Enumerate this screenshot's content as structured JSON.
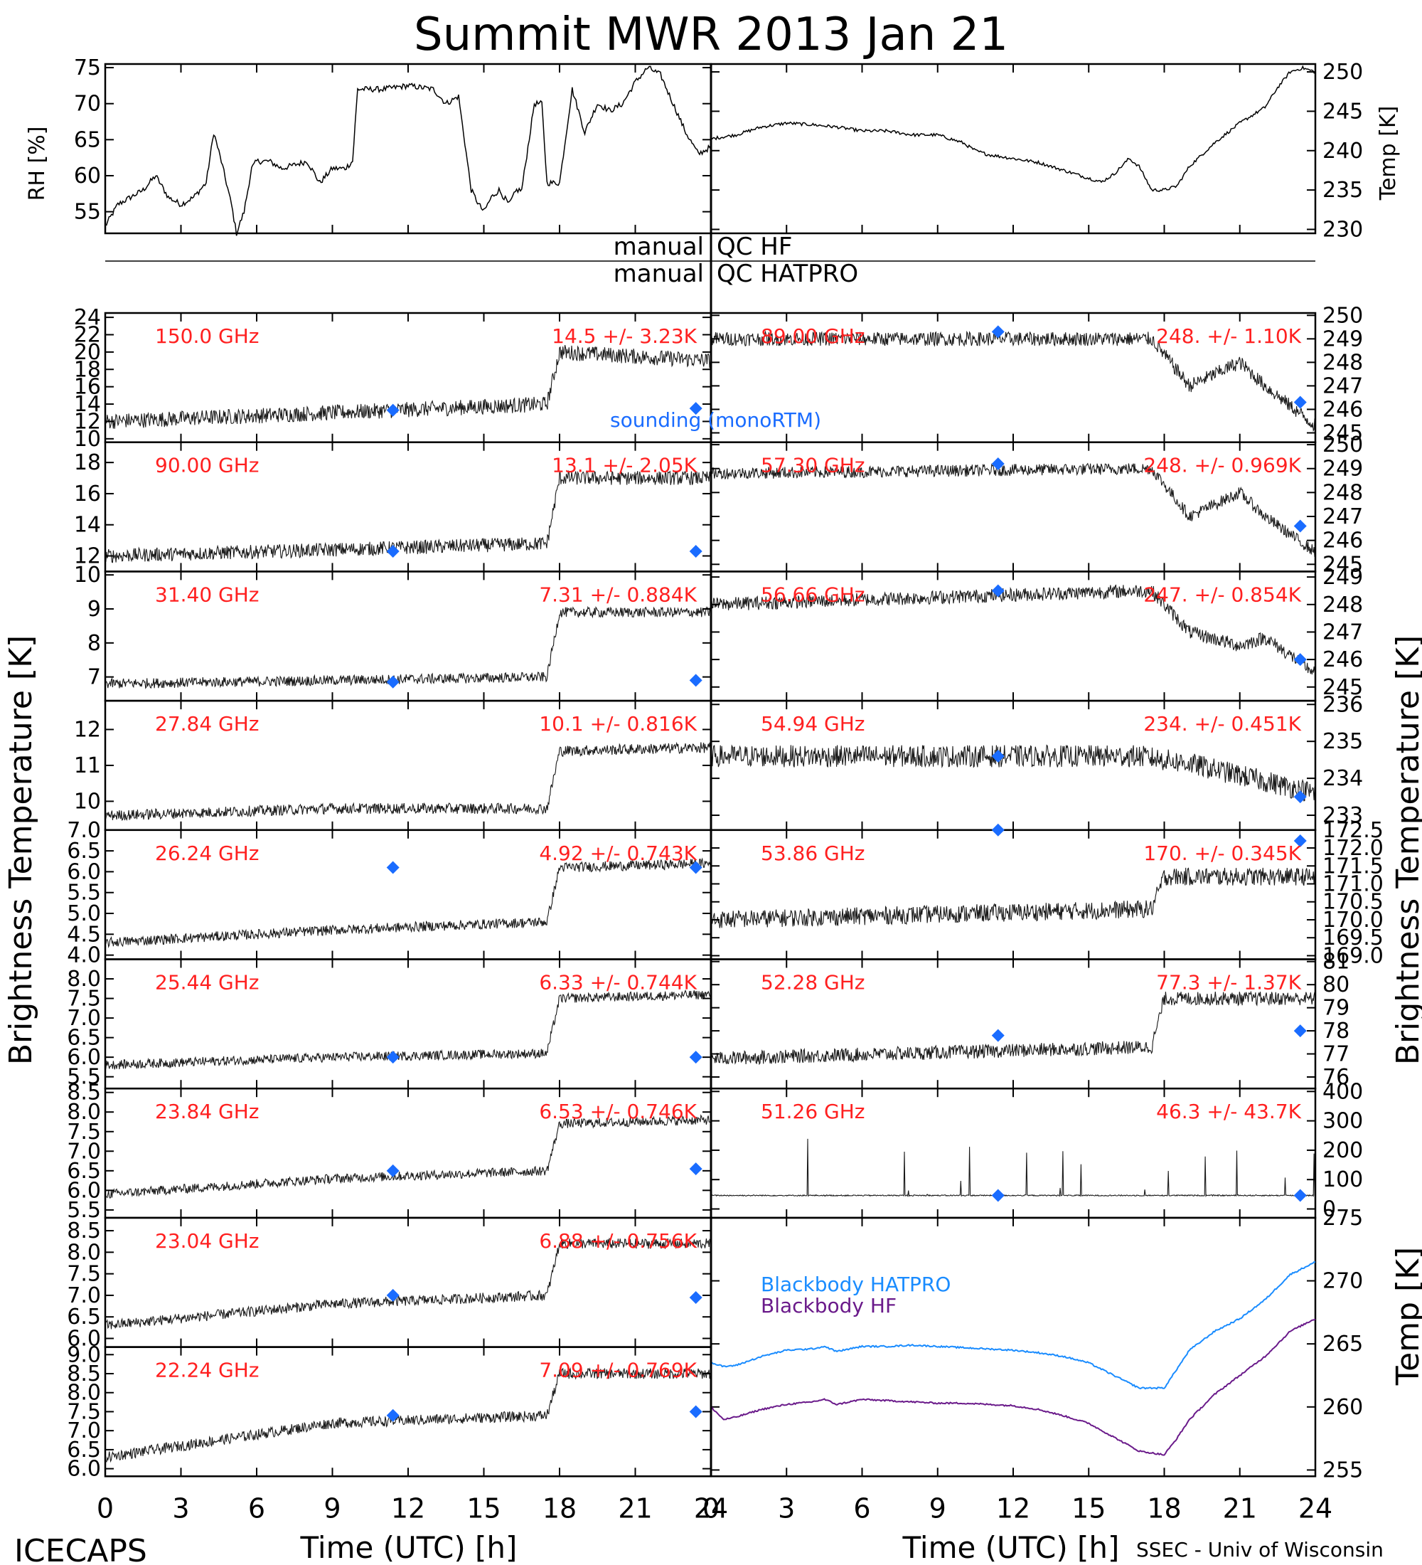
{
  "title": "Summit MWR 2013 Jan 21",
  "footer": {
    "left": "ICECAPS",
    "right": "SSEC - Univ of Wisconsin"
  },
  "qc": {
    "label_left": "manual",
    "row1": "QC HF",
    "row2": "QC HATPRO"
  },
  "axis_labels": {
    "rh": "RH [%]",
    "temp": "Temp [K]",
    "tb": "Brightness Temperature [K]",
    "bb_temp": "Temp [K]",
    "time": "Time (UTC) [h]"
  },
  "colors": {
    "sounding": "#1a6cff",
    "annotation": "#ff2020",
    "hatpro": "#1a8cff",
    "hf": "#6a1a8a",
    "data": "#000000"
  },
  "legend": {
    "sounding": "sounding (monoRTM)",
    "bb_hatpro": "Blackbody HATPRO",
    "bb_hf": "Blackbody HF"
  },
  "chart_data": [
    {
      "type": "line",
      "panel": "rh",
      "ylabel": "RH [%]",
      "xlim": [
        0,
        24
      ],
      "ylim": [
        52,
        75.5
      ],
      "yticks": [
        55,
        60,
        65,
        70,
        75
      ],
      "x": [
        0,
        0.5,
        1,
        1.5,
        2,
        2.5,
        3,
        3.5,
        4,
        4.3,
        4.6,
        5,
        5.2,
        5.5,
        5.8,
        6,
        6.5,
        7,
        8,
        8.5,
        9,
        9.5,
        9.8,
        10,
        10.5,
        11,
        12,
        13,
        13.5,
        14,
        14.5,
        14.8,
        15,
        15.3,
        15.6,
        16,
        16.3,
        16.5,
        17,
        17.3,
        17.5,
        18,
        18.5,
        19,
        19.5,
        20,
        20.5,
        21,
        21.5,
        22,
        22.5,
        23,
        23.5,
        24
      ],
      "y": [
        53,
        56,
        57,
        58,
        60,
        57,
        56,
        57,
        59,
        66,
        62,
        56,
        52,
        55,
        61,
        62,
        62,
        61,
        62,
        59,
        61,
        61,
        62,
        72,
        72,
        72,
        72.5,
        72,
        70,
        71,
        58,
        56,
        55,
        57,
        58,
        56,
        58,
        58,
        70,
        70,
        59,
        59,
        72,
        66,
        70,
        69,
        70,
        73,
        75,
        74,
        70,
        66,
        63,
        64
      ]
    },
    {
      "type": "line",
      "panel": "temp",
      "ylabel": "Temp [K]",
      "xlim": [
        0,
        24
      ],
      "ylim": [
        229.5,
        251
      ],
      "yticks": [
        230,
        235,
        240,
        245,
        250
      ],
      "x": [
        0,
        1,
        2,
        3,
        4,
        5,
        6,
        7,
        8,
        9,
        10,
        10.5,
        11,
        12,
        13,
        14,
        15,
        15.5,
        16,
        16.3,
        16.6,
        17,
        17.5,
        18,
        18.5,
        19,
        20,
        21,
        22,
        22.5,
        23,
        23.5,
        24
      ],
      "y": [
        241.5,
        242,
        243,
        243.5,
        243.3,
        243,
        242.5,
        242.5,
        242,
        242,
        241,
        240,
        239.5,
        239,
        238.5,
        237.5,
        236.5,
        236,
        237,
        238,
        239,
        238,
        235,
        235,
        235.5,
        238,
        241,
        243.5,
        245.5,
        248,
        250,
        250.5,
        250
      ]
    },
    {
      "type": "scatter",
      "panel": "150.0 GHz",
      "freq": "150.0 GHz",
      "stat": "14.5 +/- 3.23K",
      "ylim": [
        9.6,
        24.5
      ],
      "yticks": [
        10,
        12,
        14,
        16,
        18,
        20,
        22,
        24
      ],
      "base_x": [
        0,
        9,
        17.5,
        18,
        24
      ],
      "base_y": [
        12,
        13,
        14,
        20,
        19
      ],
      "noise": 0.9,
      "sounding": [
        [
          11.4,
          13.3
        ],
        [
          23.4,
          13.5
        ]
      ]
    },
    {
      "type": "scatter",
      "panel": "90.00 GHz",
      "freq": "90.00 GHz",
      "stat": "13.1 +/- 2.05K",
      "ylim": [
        11,
        19.3
      ],
      "yticks": [
        12,
        14,
        16,
        18
      ],
      "base_x": [
        0,
        9,
        17.5,
        18,
        24
      ],
      "base_y": [
        12,
        12.4,
        12.8,
        17,
        17
      ],
      "noise": 0.45,
      "sounding": [
        [
          11.4,
          12.3
        ],
        [
          23.4,
          12.3
        ]
      ]
    },
    {
      "type": "scatter",
      "panel": "31.40 GHz",
      "freq": "31.40 GHz",
      "stat": "7.31 +/- 0.884K",
      "ylim": [
        6.3,
        10.1
      ],
      "yticks": [
        7,
        8,
        9,
        10
      ],
      "base_x": [
        0,
        9,
        17.5,
        18,
        24
      ],
      "base_y": [
        6.8,
        6.9,
        7,
        8.9,
        8.9
      ],
      "noise": 0.15,
      "sounding": [
        [
          11.4,
          6.85
        ],
        [
          23.4,
          6.9
        ]
      ]
    },
    {
      "type": "scatter",
      "panel": "27.84 GHz",
      "freq": "27.84 GHz",
      "stat": "10.1 +/- 0.816K",
      "ylim": [
        9.2,
        12.8
      ],
      "yticks": [
        10,
        11,
        12
      ],
      "base_x": [
        0,
        9,
        17.5,
        18,
        24
      ],
      "base_y": [
        9.6,
        9.8,
        9.8,
        11.4,
        11.5
      ],
      "noise": 0.15,
      "sounding": []
    },
    {
      "type": "scatter",
      "panel": "26.24 GHz",
      "freq": "26.24 GHz",
      "stat": "4.92 +/- 0.743K",
      "ylim": [
        3.9,
        7.0
      ],
      "yticks": [
        4.0,
        4.5,
        5.0,
        5.5,
        6.0,
        6.5,
        7.0
      ],
      "base_x": [
        0,
        9,
        17.5,
        18,
        24
      ],
      "base_y": [
        4.3,
        4.6,
        4.8,
        6.1,
        6.2
      ],
      "noise": 0.12,
      "sounding": [
        [
          11.4,
          6.1
        ],
        [
          23.4,
          6.1
        ]
      ]
    },
    {
      "type": "scatter",
      "panel": "25.44 GHz",
      "freq": "25.44 GHz",
      "stat": "6.33 +/- 0.744K",
      "ylim": [
        5.2,
        8.5
      ],
      "yticks": [
        5.5,
        6.0,
        6.5,
        7.0,
        7.5,
        8.0
      ],
      "base_x": [
        0,
        9,
        17.5,
        18,
        24
      ],
      "base_y": [
        5.8,
        6.0,
        6.1,
        7.5,
        7.6
      ],
      "noise": 0.12,
      "sounding": [
        [
          11.4,
          6.0
        ],
        [
          23.4,
          6.0
        ]
      ]
    },
    {
      "type": "scatter",
      "panel": "23.84 GHz",
      "freq": "23.84 GHz",
      "stat": "6.53 +/- 0.746K",
      "ylim": [
        5.3,
        8.6
      ],
      "yticks": [
        5.5,
        6.0,
        6.5,
        7.0,
        7.5,
        8.0,
        8.5
      ],
      "base_x": [
        0,
        9,
        17.5,
        18,
        24
      ],
      "base_y": [
        5.9,
        6.3,
        6.5,
        7.7,
        7.8
      ],
      "noise": 0.12,
      "sounding": [
        [
          11.4,
          6.5
        ],
        [
          23.4,
          6.55
        ]
      ]
    },
    {
      "type": "scatter",
      "panel": "23.04 GHz",
      "freq": "23.04 GHz",
      "stat": "6.88 +/- 0.756K",
      "ylim": [
        5.8,
        8.8
      ],
      "yticks": [
        6.0,
        6.5,
        7.0,
        7.5,
        8.0,
        8.5
      ],
      "base_x": [
        0,
        9,
        17.5,
        18,
        24
      ],
      "base_y": [
        6.3,
        6.8,
        7.0,
        8.2,
        8.2
      ],
      "noise": 0.12,
      "sounding": [
        [
          11.4,
          7.0
        ],
        [
          23.4,
          6.95
        ]
      ]
    },
    {
      "type": "scatter",
      "panel": "22.24 GHz",
      "freq": "22.24 GHz",
      "stat": "7.09 +/- 0.769K",
      "ylim": [
        5.8,
        9.2
      ],
      "yticks": [
        6.0,
        6.5,
        7.0,
        7.5,
        8.0,
        8.5,
        9.0
      ],
      "base_x": [
        0,
        9,
        17.5,
        18,
        24
      ],
      "base_y": [
        6.3,
        7.2,
        7.4,
        8.5,
        8.5
      ],
      "noise": 0.14,
      "sounding": [
        [
          11.4,
          7.4
        ],
        [
          23.4,
          7.5
        ]
      ]
    },
    {
      "type": "scatter",
      "panel": "89.00 GHz",
      "freq": "89.00 GHz",
      "stat": "248. +/- 1.10K",
      "ylim": [
        244.6,
        250.1
      ],
      "yticks": [
        245,
        246,
        247,
        248,
        249,
        250
      ],
      "base_x": [
        0,
        17,
        17.5,
        19,
        21,
        22,
        24
      ],
      "base_y": [
        249,
        249,
        249,
        247,
        248,
        247,
        245.3
      ],
      "noise": 0.3,
      "sounding": [
        [
          11.4,
          249.3
        ],
        [
          23.4,
          246.3
        ]
      ]
    },
    {
      "type": "scatter",
      "panel": "57.30 GHz",
      "freq": "57.30 GHz",
      "stat": "248. +/- 0.969K",
      "ylim": [
        244.7,
        250.1
      ],
      "yticks": [
        245,
        246,
        247,
        248,
        249,
        250
      ],
      "base_x": [
        0,
        17,
        17.5,
        19,
        21,
        22,
        24
      ],
      "base_y": [
        248.8,
        249,
        249,
        247,
        248,
        247,
        245.5
      ],
      "noise": 0.25,
      "sounding": [
        [
          11.4,
          249.2
        ],
        [
          23.4,
          246.6
        ]
      ]
    },
    {
      "type": "scatter",
      "panel": "56.66 GHz",
      "freq": "56.66 GHz",
      "stat": "247. +/- 0.854K",
      "ylim": [
        244.5,
        249.2
      ],
      "yticks": [
        245,
        246,
        247,
        248,
        249
      ],
      "base_x": [
        0,
        17,
        17.5,
        19,
        21,
        22,
        24
      ],
      "base_y": [
        248,
        248.5,
        248.5,
        247,
        246.5,
        246.8,
        245.5
      ],
      "noise": 0.25,
      "sounding": [
        [
          11.4,
          248.5
        ],
        [
          23.4,
          246.0
        ]
      ]
    },
    {
      "type": "scatter",
      "panel": "54.94 GHz",
      "freq": "54.94 GHz",
      "stat": "234. +/- 0.451K",
      "ylim": [
        232.6,
        236.1
      ],
      "yticks": [
        233,
        234,
        235,
        236
      ],
      "base_x": [
        0,
        17,
        19,
        24
      ],
      "base_y": [
        234.6,
        234.6,
        234.4,
        233.6
      ],
      "noise": 0.3,
      "sounding": [
        [
          11.4,
          234.6
        ],
        [
          23.4,
          233.5
        ]
      ]
    },
    {
      "type": "scatter",
      "panel": "53.86 GHz",
      "freq": "53.86 GHz",
      "stat": "170. +/- 0.345K",
      "ylim": [
        168.9,
        172.5
      ],
      "yticks": [
        169.0,
        169.5,
        170.0,
        170.5,
        171.0,
        171.5,
        172.0,
        172.5
      ],
      "base_x": [
        0,
        17.5,
        18,
        24
      ],
      "base_y": [
        170,
        170.3,
        171.2,
        171.2
      ],
      "noise": 0.25,
      "sounding": [
        [
          11.4,
          172.6
        ],
        [
          23.4,
          172.2
        ]
      ]
    },
    {
      "type": "scatter",
      "panel": "52.28 GHz",
      "freq": "52.28 GHz",
      "stat": "77.3 +/- 1.37K",
      "ylim": [
        75.5,
        81.1
      ],
      "yticks": [
        76,
        77,
        78,
        79,
        80,
        81
      ],
      "base_x": [
        0,
        17.5,
        18,
        24
      ],
      "base_y": [
        76.8,
        77.3,
        79.4,
        79.4
      ],
      "noise": 0.3,
      "sounding": [
        [
          11.4,
          77.8
        ],
        [
          23.4,
          78.0
        ]
      ]
    },
    {
      "type": "scatter",
      "panel": "51.26 GHz",
      "freq": "51.26 GHz",
      "stat": "46.3 +/- 43.7K",
      "ylim": [
        -30,
        410
      ],
      "yticks": [
        0,
        100,
        200,
        300,
        400
      ],
      "base_x": [
        0,
        24
      ],
      "base_y": [
        46,
        46
      ],
      "noise": 2,
      "sounding": [
        [
          11.4,
          46
        ],
        [
          23.4,
          46
        ]
      ]
    },
    {
      "type": "line",
      "panel": "blackbody",
      "ylabel": "Temp [K]",
      "xlim": [
        0,
        24
      ],
      "ylim": [
        254.5,
        275
      ],
      "yticks": [
        255,
        260,
        265,
        270,
        275
      ],
      "series": [
        {
          "name": "Blackbody HATPRO",
          "x": [
            0,
            0.5,
            1,
            2,
            3,
            4,
            4.5,
            5,
            5.5,
            6,
            7,
            8,
            9,
            10,
            11,
            12,
            13,
            14,
            15,
            16,
            17,
            18,
            18.5,
            19,
            20,
            21,
            22,
            23,
            24
          ],
          "y": [
            263.5,
            263.2,
            263.3,
            264,
            264.5,
            264.6,
            264.8,
            264.4,
            264.6,
            264.8,
            264.8,
            264.9,
            264.8,
            264.7,
            264.6,
            264.5,
            264.3,
            264,
            263.5,
            262.5,
            261.5,
            261.5,
            263,
            264.5,
            266,
            267,
            268.5,
            270.5,
            271.5
          ]
        },
        {
          "name": "Blackbody HF",
          "x": [
            0,
            0.5,
            1,
            2,
            3,
            4,
            4.5,
            5,
            5.5,
            6,
            7,
            8,
            9,
            10,
            11,
            12,
            13,
            14,
            15,
            16,
            17,
            18,
            18.5,
            19,
            20,
            21,
            22,
            23,
            24
          ],
          "y": [
            260,
            259,
            259.2,
            259.8,
            260.2,
            260.4,
            260.6,
            260.2,
            260.4,
            260.6,
            260.5,
            260.4,
            260.3,
            260.3,
            260.2,
            260.1,
            259.8,
            259.3,
            258.7,
            257.6,
            256.5,
            256.2,
            257.5,
            259,
            261,
            262.5,
            264,
            266,
            267
          ]
        }
      ]
    }
  ],
  "x_ticks": [
    "0",
    "3",
    "6",
    "9",
    "12",
    "15",
    "18",
    "21",
    "24"
  ]
}
